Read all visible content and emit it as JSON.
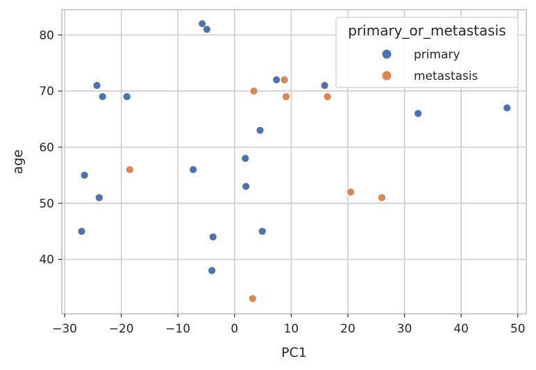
{
  "chart_data": {
    "type": "scatter",
    "xlabel": "PC1",
    "ylabel": "age",
    "xlim": [
      -30.5,
      51.5
    ],
    "ylim": [
      30.3,
      84.5
    ],
    "xticks": [
      -30,
      -20,
      -10,
      0,
      10,
      20,
      30,
      40,
      50
    ],
    "yticks": [
      40,
      50,
      60,
      70,
      80
    ],
    "grid": true,
    "legend": {
      "title": "primary_or_metastasis",
      "placement": "top-right"
    },
    "series": [
      {
        "name": "primary",
        "color": "#4c72b0",
        "points": [
          {
            "x": -5.7,
            "y": 82
          },
          {
            "x": -4.9,
            "y": 81
          },
          {
            "x": -24.3,
            "y": 71
          },
          {
            "x": -23.3,
            "y": 69
          },
          {
            "x": -19.0,
            "y": 69
          },
          {
            "x": 7.4,
            "y": 72
          },
          {
            "x": 15.9,
            "y": 71
          },
          {
            "x": 32.4,
            "y": 66
          },
          {
            "x": 48.1,
            "y": 67
          },
          {
            "x": 4.5,
            "y": 63
          },
          {
            "x": 1.9,
            "y": 58
          },
          {
            "x": -7.3,
            "y": 56
          },
          {
            "x": -26.5,
            "y": 55
          },
          {
            "x": 2.0,
            "y": 53
          },
          {
            "x": -23.9,
            "y": 51
          },
          {
            "x": -27.0,
            "y": 45
          },
          {
            "x": 4.9,
            "y": 45
          },
          {
            "x": -3.8,
            "y": 44
          },
          {
            "x": -4.0,
            "y": 38
          }
        ]
      },
      {
        "name": "metastasis",
        "color": "#dd8452",
        "points": [
          {
            "x": 3.4,
            "y": 70
          },
          {
            "x": 8.8,
            "y": 72
          },
          {
            "x": 9.1,
            "y": 69
          },
          {
            "x": 16.4,
            "y": 69
          },
          {
            "x": -18.5,
            "y": 56
          },
          {
            "x": 20.5,
            "y": 52
          },
          {
            "x": 26.0,
            "y": 51
          },
          {
            "x": 3.2,
            "y": 33
          }
        ]
      }
    ]
  }
}
